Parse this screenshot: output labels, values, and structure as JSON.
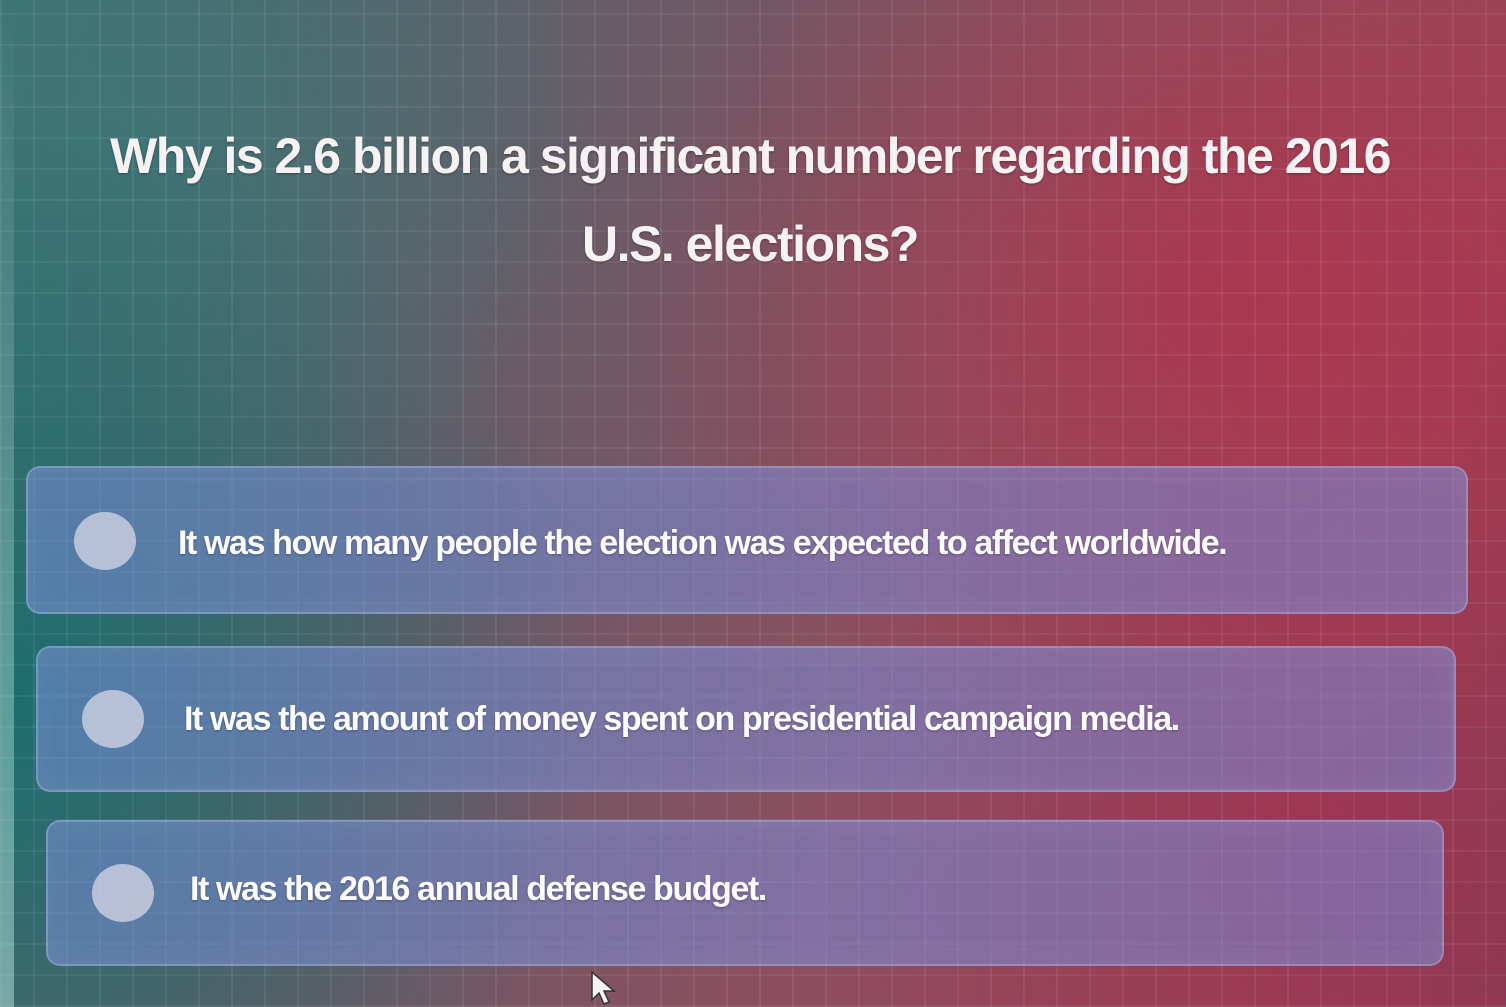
{
  "question": {
    "line1": "Why is 2.6 billion a significant number regarding the 2016",
    "line2": "U.S. elections?"
  },
  "options": [
    {
      "label": "It was how many people the election was expected to affect worldwide.",
      "selected": false
    },
    {
      "label": "It was the amount of money spent on presidential campaign media.",
      "selected": false
    },
    {
      "label": "It was the 2016 annual defense budget.",
      "selected": false
    }
  ],
  "icons": {
    "radio": "radio-circle-icon",
    "cursor": "mouse-pointer-icon"
  }
}
